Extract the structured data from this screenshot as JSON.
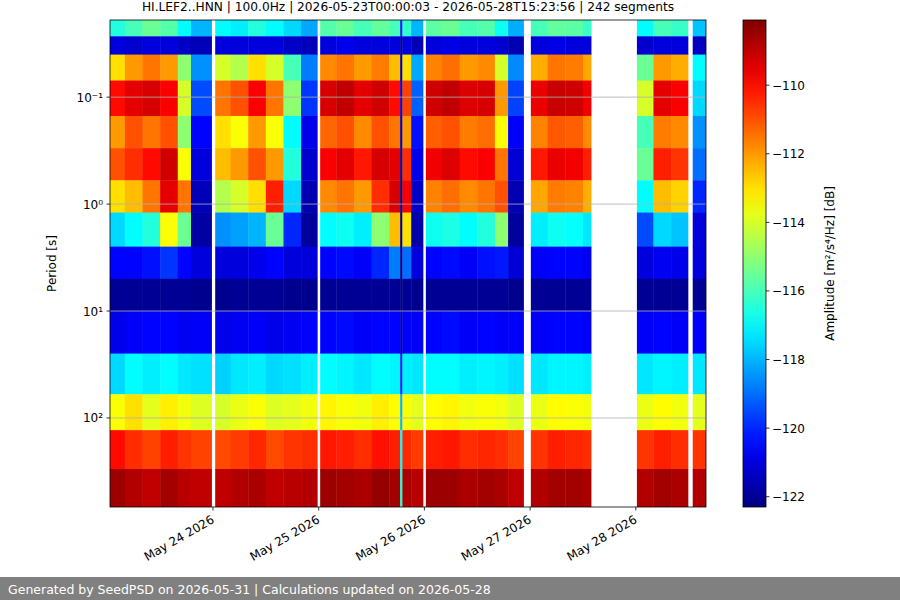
{
  "chart_data": {
    "type": "heatmap",
    "title": "HI.LEF2..HNN | 100.0Hz | 2026-05-23T00:00:03 - 2026-05-28T15:23:56 | 242 segments",
    "y_label": "Period [s]",
    "log": "y",
    "grid": true,
    "xlim": [
      "2026-05-23T00:37",
      "2026-05-28T15:56"
    ],
    "xticks": [
      {
        "value": "2026-05-24",
        "label": "May 24 2026"
      },
      {
        "value": "2026-05-25",
        "label": "May 25 2026"
      },
      {
        "value": "2026-05-26",
        "label": "May 26 2026"
      },
      {
        "value": "2026-05-27",
        "label": "May 27 2026"
      },
      {
        "value": "2026-05-28",
        "label": "May 28 2026"
      }
    ],
    "ylim": [
      0.019,
      680
    ],
    "yticks": [
      {
        "value": 0.1,
        "label": "10⁻¹"
      },
      {
        "value": 1,
        "label": "10⁰"
      },
      {
        "value": 10,
        "label": "10¹"
      },
      {
        "value": 100,
        "label": "10²"
      }
    ],
    "x_bins": [
      "2026-05-23T00:37",
      "2026-05-23T04:00",
      "2026-05-23T08:00",
      "2026-05-23T12:00",
      "2026-05-23T16:00",
      "2026-05-23T19:00",
      "2026-05-23T23:40",
      "2026-05-24T00:30",
      "2026-05-24T04:00",
      "2026-05-24T08:00",
      "2026-05-24T12:00",
      "2026-05-24T16:00",
      "2026-05-24T20:00",
      "2026-05-24T23:40",
      "2026-05-25T00:20",
      "2026-05-25T04:00",
      "2026-05-25T08:00",
      "2026-05-25T12:00",
      "2026-05-25T16:00",
      "2026-05-25T18:30",
      "2026-05-25T19:00",
      "2026-05-25T21:00",
      "2026-05-25T23:40",
      "2026-05-26T00:20",
      "2026-05-26T04:00",
      "2026-05-26T08:00",
      "2026-05-26T12:00",
      "2026-05-26T16:00",
      "2026-05-26T19:00",
      "2026-05-26T22:30",
      "2026-05-27T00:10",
      "2026-05-27T04:00",
      "2026-05-27T08:00",
      "2026-05-27T12:00",
      "2026-05-27T13:50",
      "2026-05-28T00:15",
      "2026-05-28T04:00",
      "2026-05-28T08:00",
      "2026-05-28T11:50",
      "2026-05-28T12:55",
      "2026-05-28T15:56"
    ],
    "y_bins": [
      0.019,
      0.027,
      0.04,
      0.07,
      0.15,
      0.3,
      0.6,
      1.2,
      2.5,
      5,
      10,
      25,
      60,
      130,
      300,
      680
    ],
    "cells": [
      [
        -116.5,
        -121,
        -113,
        -110,
        -112,
        -111,
        -113,
        -117.5,
        -120.5,
        -122,
        -120.8,
        -117.5,
        -113.5,
        -110,
        -108.5
      ],
      [
        -116,
        -121.2,
        -112,
        -109.5,
        -111,
        -110.5,
        -112.5,
        -117,
        -120.5,
        -122,
        -120.6,
        -117,
        -113,
        -110.5,
        -108.8
      ],
      [
        -115.5,
        -121,
        -111.5,
        -109.3,
        -111.5,
        -110,
        -111.5,
        -116.5,
        -120.3,
        -122,
        -120.5,
        -117.2,
        -113.8,
        -110.8,
        -109
      ],
      [
        -115.8,
        -121,
        -112,
        -109.8,
        -111,
        -109.2,
        -109.5,
        -113.5,
        -119.8,
        -122,
        -120.5,
        -117,
        -113.2,
        -110.3,
        -108.6
      ],
      [
        -117,
        -121.3,
        -115,
        -114,
        -115,
        -113.5,
        -111.5,
        -115.5,
        -120.5,
        -122,
        -120.7,
        -117.3,
        -113.6,
        -110.6,
        -108.9
      ],
      [
        -118,
        -121.5,
        -118.5,
        -119.5,
        -120.5,
        -121,
        -121.5,
        -121.8,
        -121,
        -122.1,
        -120.6,
        -117.4,
        -113.9,
        -110.8,
        -109
      ],
      [
        null,
        null,
        null,
        null,
        null,
        null,
        null,
        null,
        null,
        null,
        null,
        null,
        null,
        null,
        null
      ],
      [
        -117,
        -121,
        -114,
        -111.5,
        -113,
        -112.5,
        -114.5,
        -118.5,
        -121,
        -122.1,
        -120.8,
        -117.6,
        -114,
        -110.9,
        -109
      ],
      [
        -117.2,
        -121,
        -114.5,
        -111,
        -113.5,
        -112,
        -114,
        -118.3,
        -121,
        -122,
        -120.7,
        -117.3,
        -113.7,
        -110.7,
        -108.8
      ],
      [
        -116.5,
        -121,
        -113,
        -109.8,
        -112,
        -111,
        -113,
        -118,
        -120.8,
        -122,
        -120.6,
        -117.2,
        -113.5,
        -110.4,
        -108.7
      ],
      [
        -117,
        -121,
        -114,
        -111.5,
        -113.5,
        -112,
        -110.3,
        -115.5,
        -120.5,
        -122,
        -120.8,
        -117.5,
        -113.9,
        -110.9,
        -109
      ],
      [
        -117.5,
        -121.3,
        -116,
        -115,
        -117,
        -116.5,
        -117.5,
        -120,
        -121,
        -122.1,
        -120.7,
        -117.4,
        -113.8,
        -110.6,
        -108.9
      ],
      [
        -118.2,
        -121.5,
        -118.8,
        -119.8,
        -120.8,
        -121.2,
        -121.6,
        -121.9,
        -121,
        -122.1,
        -120.5,
        -117.2,
        -113.6,
        -110.5,
        -108.8
      ],
      [
        null,
        null,
        null,
        null,
        null,
        null,
        null,
        null,
        null,
        null,
        null,
        null,
        null,
        null,
        null
      ],
      [
        -115.8,
        -121,
        -111.8,
        -109.3,
        -111.3,
        -109.8,
        -111.8,
        -117,
        -120.5,
        -122,
        -120.5,
        -117,
        -113.3,
        -110.2,
        -108.5
      ],
      [
        -115.5,
        -120.8,
        -111.5,
        -109,
        -111,
        -109.5,
        -111.5,
        -116.8,
        -120.4,
        -122,
        -120.4,
        -117.1,
        -113.5,
        -110.3,
        -108.6
      ],
      [
        -116,
        -121,
        -112,
        -109.5,
        -111.8,
        -110.2,
        -112,
        -117.2,
        -120.6,
        -122,
        -120.6,
        -117.3,
        -113.6,
        -110.5,
        -108.7
      ],
      [
        -115.6,
        -121,
        -111.6,
        -109.2,
        -111,
        -109.3,
        -110.5,
        -115,
        -120,
        -122,
        -120.5,
        -117,
        -113.2,
        -110.1,
        -108.4
      ],
      [
        -116,
        -121,
        -112.5,
        -110,
        -111.5,
        -109.5,
        -109.3,
        -112.5,
        -118.8,
        -122,
        -120.5,
        -117.1,
        -113.4,
        -110.3,
        -108.6
      ],
      [
        -120,
        -122,
        -121.5,
        -121,
        -121.5,
        -121.8,
        -122,
        -122.1,
        -122.1,
        -122.2,
        -121.5,
        -120,
        -118,
        -117,
        -116.5
      ],
      [
        -116.3,
        -121,
        -113,
        -110.8,
        -112,
        -110.5,
        -109.8,
        -113,
        -119,
        -122,
        -120.6,
        -117.2,
        -113.5,
        -110.4,
        -108.7
      ],
      [
        -118,
        -121.5,
        -118.2,
        -119.2,
        -120.3,
        -120.8,
        -121.3,
        -121.7,
        -121,
        -122.1,
        -120.6,
        -117.3,
        -113.8,
        -110.7,
        -108.9
      ],
      [
        null,
        null,
        null,
        null,
        null,
        null,
        null,
        null,
        null,
        null,
        null,
        null,
        null,
        null,
        null
      ],
      [
        -115.7,
        -121,
        -111.7,
        -109.2,
        -111.2,
        -109.7,
        -111.7,
        -116.8,
        -120.5,
        -122,
        -120.5,
        -117,
        -113.4,
        -110.3,
        -108.5
      ],
      [
        -115.5,
        -120.9,
        -111.4,
        -109,
        -111,
        -109.4,
        -111.4,
        -116.6,
        -120.4,
        -122,
        -120.4,
        -117,
        -113.3,
        -110.2,
        -108.5
      ],
      [
        -116,
        -121,
        -112,
        -109.4,
        -111.6,
        -110,
        -111.8,
        -117,
        -120.6,
        -122,
        -120.6,
        -117.2,
        -113.6,
        -110.5,
        -108.7
      ],
      [
        -115.8,
        -121,
        -111.8,
        -109.3,
        -111.4,
        -109.8,
        -111.5,
        -116.5,
        -120.3,
        -122,
        -120.5,
        -117.1,
        -113.5,
        -110.4,
        -108.6
      ],
      [
        -116.8,
        -121.2,
        -114,
        -112,
        -113.5,
        -111.5,
        -111,
        -115,
        -120.2,
        -122,
        -120.6,
        -117.2,
        -113.6,
        -110.5,
        -108.7
      ],
      [
        -118.1,
        -121.6,
        -118.6,
        -119.6,
        -120.6,
        -121.1,
        -121.6,
        -121.9,
        -121.1,
        -122.1,
        -120.6,
        -117.4,
        -113.9,
        -110.8,
        -109
      ],
      [
        null,
        null,
        null,
        null,
        null,
        null,
        null,
        null,
        null,
        null,
        null,
        null,
        null,
        null,
        null
      ],
      [
        -116,
        -121,
        -112.3,
        -109.6,
        -111.7,
        -110.2,
        -112.2,
        -117.2,
        -120.6,
        -122,
        -120.6,
        -117.3,
        -113.7,
        -110.6,
        -108.8
      ],
      [
        -115.6,
        -120.9,
        -111.5,
        -109.1,
        -111.1,
        -109.6,
        -111.6,
        -116.8,
        -120.5,
        -122,
        -120.5,
        -117.1,
        -113.4,
        -110.3,
        -108.6
      ],
      [
        -115.7,
        -121,
        -111.6,
        -109.2,
        -111.2,
        -109.7,
        -111.7,
        -116.9,
        -120.5,
        -122,
        -120.5,
        -117.1,
        -113.5,
        -110.4,
        -108.6
      ],
      [
        -116.2,
        -121,
        -112.2,
        -109.7,
        -111.8,
        -110.3,
        -112.3,
        -117.3,
        -120.7,
        -122,
        -120.6,
        -117.2,
        -113.6,
        -110.5,
        -108.7
      ],
      [
        null,
        null,
        null,
        null,
        null,
        null,
        null,
        null,
        null,
        null,
        null,
        null,
        null,
        null,
        null
      ],
      [
        -117,
        -121.2,
        -115.5,
        -114,
        -116,
        -115.5,
        -117,
        -119.5,
        -121,
        -122,
        -120.6,
        -117.3,
        -113.7,
        -110.6,
        -108.8
      ],
      [
        -116,
        -121,
        -112,
        -109.5,
        -111.6,
        -110.3,
        -112.5,
        -117.5,
        -120.7,
        -122,
        -120.5,
        -117.1,
        -113.4,
        -110.3,
        -108.6
      ],
      [
        -116.2,
        -121,
        -112.3,
        -109.8,
        -111.8,
        -110.6,
        -112.8,
        -117.8,
        -120.8,
        -122,
        -120.6,
        -117.2,
        -113.6,
        -110.5,
        -108.7
      ],
      [
        null,
        null,
        null,
        null,
        null,
        null,
        null,
        null,
        null,
        null,
        null,
        null,
        null,
        null,
        null
      ],
      [
        -117.8,
        -121.4,
        -117,
        -117.5,
        -118.5,
        -119,
        -120,
        -121,
        -121,
        -122,
        -120.6,
        -117.3,
        -113.8,
        -110.6,
        -108.8
      ]
    ],
    "colorbar": {
      "label": "Amplitude [m²/s⁴/Hz] [dB]",
      "lim": [
        -122.3,
        -108.1
      ],
      "ticks": [
        {
          "value": -110,
          "label": "−110"
        },
        {
          "value": -112,
          "label": "−112"
        },
        {
          "value": -114,
          "label": "−114"
        },
        {
          "value": -116,
          "label": "−116"
        },
        {
          "value": -118,
          "label": "−118"
        },
        {
          "value": -120,
          "label": "−120"
        },
        {
          "value": -122,
          "label": "−122"
        }
      ]
    }
  },
  "footer": "Generated by SeedPSD on 2026-05-31 | Calculations updated on 2026-05-28"
}
